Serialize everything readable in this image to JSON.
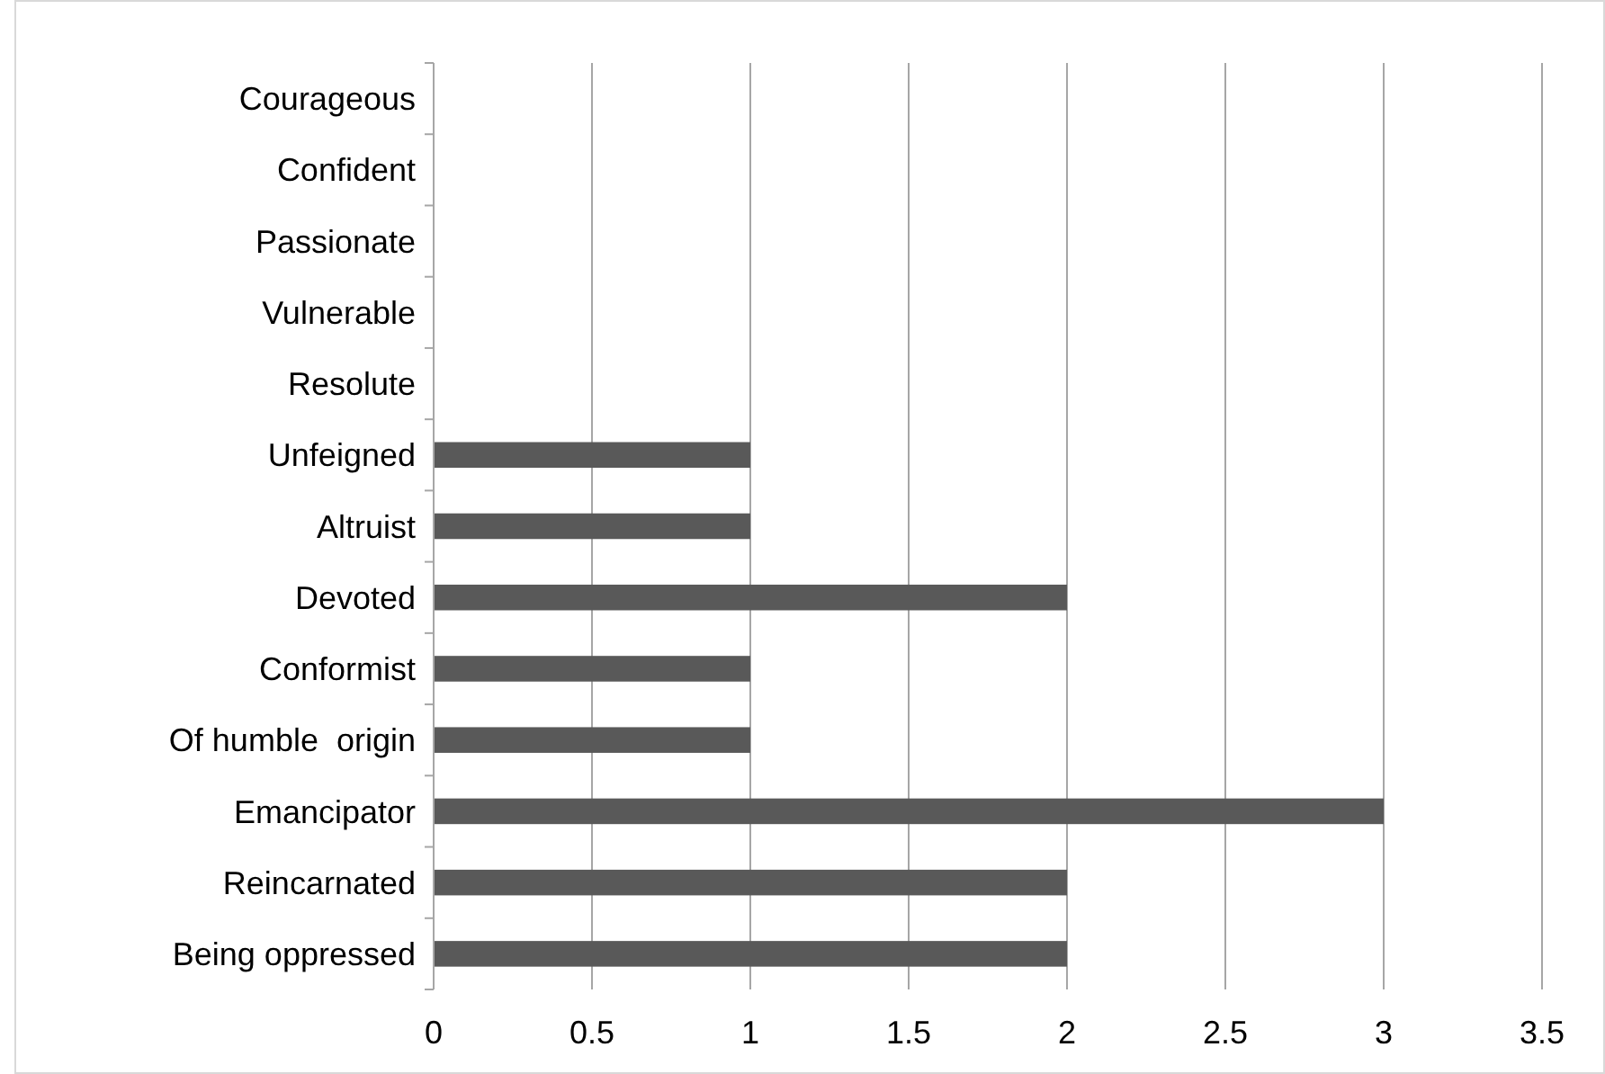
{
  "chart_data": {
    "type": "bar",
    "orientation": "horizontal",
    "categories": [
      "Courageous",
      "Confident",
      "Passionate",
      "Vulnerable",
      "Resolute",
      "Unfeigned",
      "Altruist",
      "Devoted",
      "Conformist",
      "Of humble  origin",
      "Emancipator",
      "Reincarnated",
      "Being oppressed"
    ],
    "values": [
      0,
      0,
      0,
      0,
      0,
      1,
      1,
      2,
      1,
      1,
      3,
      2,
      2
    ],
    "color": "#595959",
    "xlim": [
      0,
      3.5
    ],
    "xticks": [
      0,
      0.5,
      1,
      1.5,
      2,
      2.5,
      3,
      3.5
    ],
    "grid": "x"
  }
}
